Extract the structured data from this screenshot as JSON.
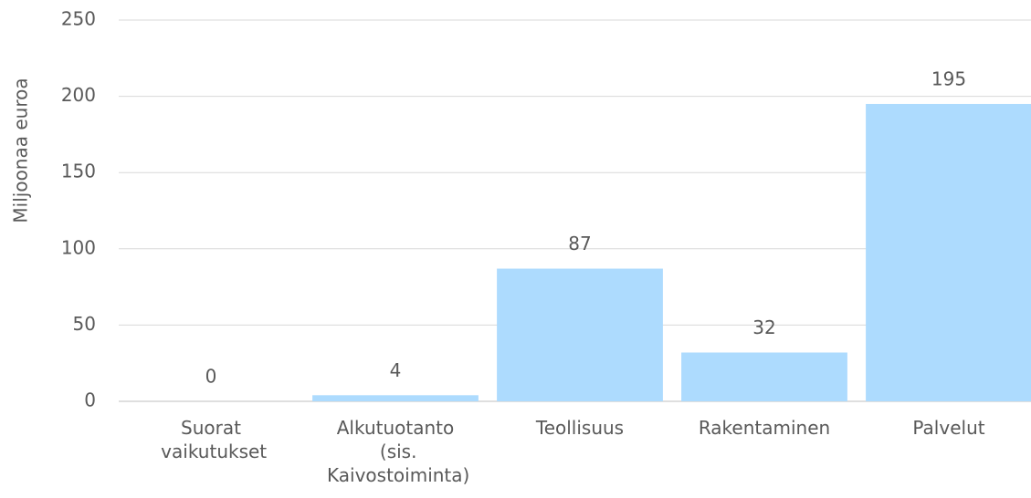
{
  "chart_data": {
    "type": "bar",
    "y_label": "Miljoonaa euroa",
    "categories": [
      "Suorat vaikutukset",
      "Alkutuotanto (sis. Kaivostoiminta)",
      "Teollisuus",
      "Rakentaminen",
      "Palvelut"
    ],
    "values": [
      0,
      4,
      87,
      32,
      195
    ],
    "color": "#addbfe",
    "ylim": [
      0,
      250
    ],
    "yticks": [
      0,
      50,
      100,
      150,
      200,
      250
    ],
    "grid": true
  }
}
